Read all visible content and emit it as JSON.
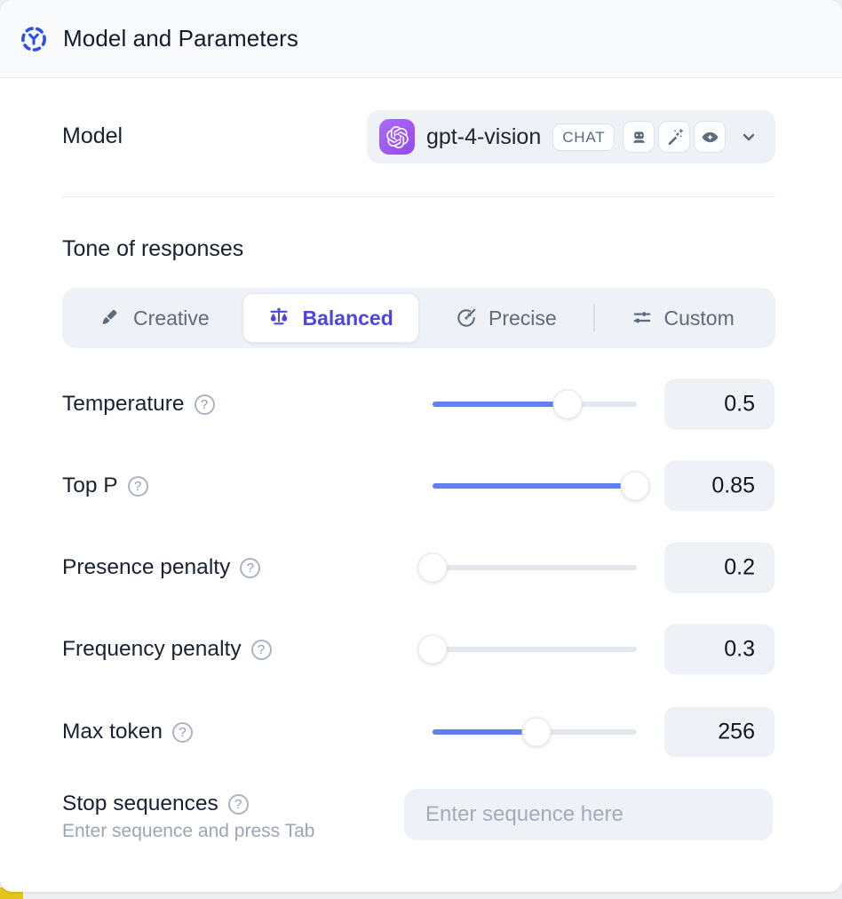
{
  "header": {
    "title": "Model and Parameters",
    "icon": "model-hub-icon"
  },
  "model": {
    "label": "Model",
    "selected_name": "gpt-4-vision",
    "provider_icon": "openai-logo",
    "type_badge": "CHAT",
    "capability_icons": [
      "robot-icon",
      "magic-wand-icon",
      "vision-eye-icon"
    ],
    "dropdown_icon": "chevron-down-icon"
  },
  "tone": {
    "heading": "Tone of responses",
    "tabs": [
      {
        "label": "Creative",
        "icon": "paintbrush-icon",
        "active": false
      },
      {
        "label": "Balanced",
        "icon": "balance-scale-icon",
        "active": true
      },
      {
        "label": "Precise",
        "icon": "target-arrow-icon",
        "active": false
      },
      {
        "label": "Custom",
        "icon": "sliders-tune-icon",
        "active": false
      }
    ]
  },
  "parameters": [
    {
      "label": "Temperature",
      "value": "0.5",
      "fill_pct": 66
    },
    {
      "label": "Top P",
      "value": "0.85",
      "fill_pct": 99
    },
    {
      "label": "Presence penalty",
      "value": "0.2",
      "fill_pct": 0
    },
    {
      "label": "Frequency penalty",
      "value": "0.3",
      "fill_pct": 0
    },
    {
      "label": "Max token",
      "value": "256",
      "fill_pct": 51
    }
  ],
  "stop_sequences": {
    "label": "Stop sequences",
    "hint": "Enter sequence and press Tab",
    "placeholder": "Enter sequence here",
    "value": ""
  },
  "help_glyph": "?",
  "colors": {
    "accent_indigo": "#4b46dd",
    "slider_blue": "#6181f3",
    "header_icon_blue": "#2b50e8",
    "openai_purple": "#9c4ff0",
    "panel_gray": "#eef1f6",
    "header_band": "#f8fafc",
    "corner_yellow": "#e4c41d"
  }
}
